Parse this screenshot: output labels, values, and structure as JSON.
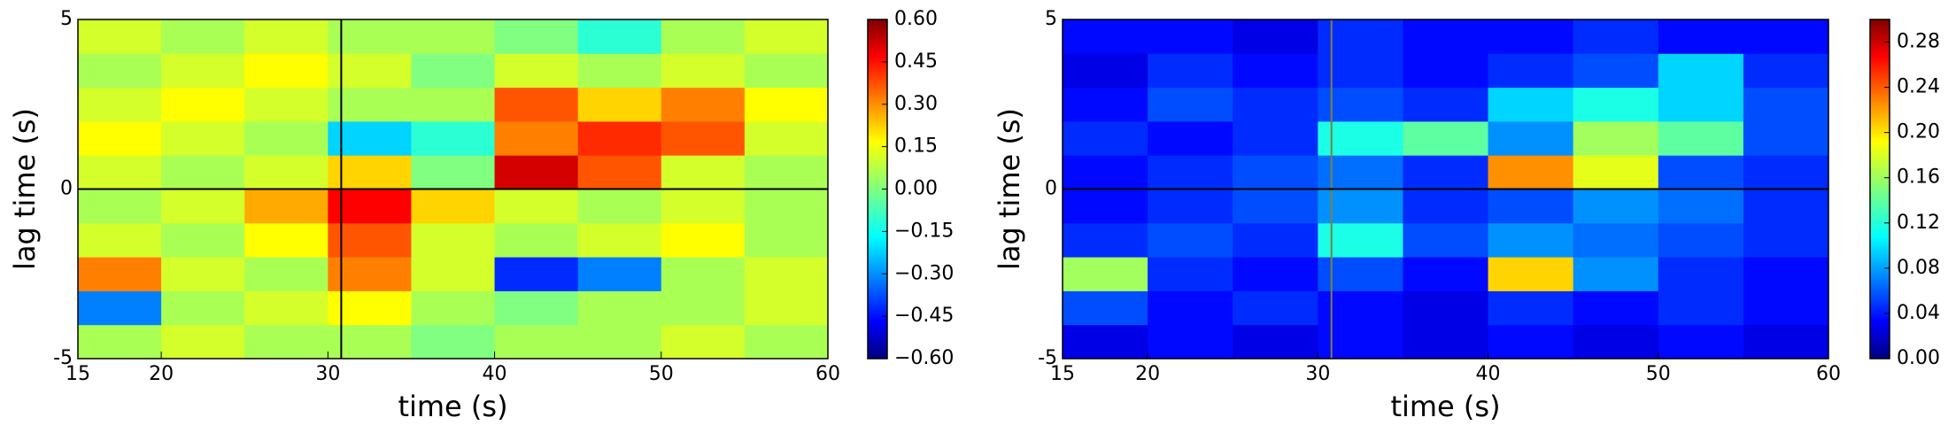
{
  "chart_data": [
    {
      "type": "heatmap",
      "xlabel": "time (s)",
      "ylabel": "lag time (s)",
      "colormap": "jet",
      "x": [
        17.5,
        22.5,
        27.5,
        32.5,
        37.5,
        42.5,
        47.5,
        52.5,
        57.5
      ],
      "y": [
        -4.5,
        -3.5,
        -2.5,
        -1.5,
        -0.5,
        0.5,
        1.5,
        2.5,
        3.5,
        4.5
      ],
      "z": [
        [
          0.05,
          0.1,
          0.05,
          0.05,
          0.0,
          0.05,
          0.05,
          0.1,
          0.05
        ],
        [
          -0.3,
          0.05,
          0.1,
          0.15,
          0.05,
          0.0,
          0.05,
          0.05,
          0.1
        ],
        [
          0.3,
          0.1,
          0.05,
          0.3,
          0.1,
          -0.4,
          -0.3,
          0.05,
          0.1
        ],
        [
          0.1,
          0.05,
          0.15,
          0.35,
          0.1,
          0.05,
          0.1,
          0.15,
          0.05
        ],
        [
          0.05,
          0.1,
          0.25,
          0.45,
          0.2,
          0.1,
          0.05,
          0.1,
          0.05
        ],
        [
          0.1,
          0.05,
          0.1,
          0.2,
          0.0,
          0.5,
          0.35,
          0.1,
          0.05
        ],
        [
          0.15,
          0.1,
          0.05,
          -0.2,
          -0.1,
          0.3,
          0.4,
          0.35,
          0.1
        ],
        [
          0.1,
          0.15,
          0.1,
          0.05,
          0.05,
          0.35,
          0.2,
          0.3,
          0.15
        ],
        [
          0.05,
          0.1,
          0.15,
          0.1,
          0.0,
          0.1,
          0.05,
          0.1,
          0.05
        ],
        [
          0.1,
          0.05,
          0.1,
          0.05,
          0.05,
          0.0,
          -0.1,
          0.05,
          0.1
        ]
      ],
      "xlim": [
        15,
        60
      ],
      "xticks": [
        15,
        20,
        30,
        40,
        50,
        60
      ],
      "ylim": [
        -5,
        5
      ],
      "yticks": [
        -5,
        0,
        5
      ],
      "vline": 30.8,
      "hline": 0,
      "line_color": "#000000",
      "clim": [
        -0.6,
        0.6
      ],
      "cticks": [
        {
          "value": -0.6,
          "label": "−0.60"
        },
        {
          "value": -0.45,
          "label": "−0.45"
        },
        {
          "value": -0.3,
          "label": "−0.30"
        },
        {
          "value": -0.15,
          "label": "−0.15"
        },
        {
          "value": 0,
          "label": "0.00"
        },
        {
          "value": 0.15,
          "label": "0.15"
        },
        {
          "value": 0.3,
          "label": "0.30"
        },
        {
          "value": 0.45,
          "label": "0.45"
        },
        {
          "value": 0.6,
          "label": "0.60"
        }
      ]
    },
    {
      "type": "heatmap",
      "xlabel": "time (s)",
      "ylabel": "lag time (s)",
      "colormap": "jet",
      "x": [
        17.5,
        22.5,
        27.5,
        32.5,
        37.5,
        42.5,
        47.5,
        52.5,
        57.5
      ],
      "y": [
        -4.5,
        -3.5,
        -2.5,
        -1.5,
        -0.5,
        0.5,
        1.5,
        2.5,
        3.5,
        4.5
      ],
      "z": [
        [
          0.03,
          0.04,
          0.03,
          0.04,
          0.03,
          0.04,
          0.03,
          0.04,
          0.03
        ],
        [
          0.06,
          0.04,
          0.05,
          0.04,
          0.03,
          0.05,
          0.04,
          0.05,
          0.04
        ],
        [
          0.16,
          0.05,
          0.04,
          0.06,
          0.04,
          0.2,
          0.08,
          0.05,
          0.04
        ],
        [
          0.05,
          0.06,
          0.05,
          0.12,
          0.06,
          0.08,
          0.07,
          0.06,
          0.05
        ],
        [
          0.04,
          0.05,
          0.06,
          0.08,
          0.05,
          0.06,
          0.08,
          0.07,
          0.05
        ],
        [
          0.04,
          0.05,
          0.06,
          0.07,
          0.05,
          0.22,
          0.18,
          0.06,
          0.05
        ],
        [
          0.05,
          0.04,
          0.05,
          0.12,
          0.14,
          0.08,
          0.16,
          0.14,
          0.06
        ],
        [
          0.04,
          0.06,
          0.05,
          0.06,
          0.05,
          0.1,
          0.12,
          0.1,
          0.06
        ],
        [
          0.03,
          0.05,
          0.04,
          0.05,
          0.04,
          0.05,
          0.06,
          0.1,
          0.05
        ],
        [
          0.04,
          0.04,
          0.03,
          0.05,
          0.04,
          0.04,
          0.05,
          0.04,
          0.04
        ]
      ],
      "xlim": [
        15,
        60
      ],
      "xticks": [
        15,
        20,
        30,
        40,
        50,
        60
      ],
      "ylim": [
        -5,
        5
      ],
      "yticks": [
        -5,
        0,
        5
      ],
      "vline": 30.8,
      "hline": 0,
      "vline_color": "#808040",
      "line_color": "#000000",
      "clim": [
        0,
        0.3
      ],
      "cticks": [
        {
          "value": 0,
          "label": "0.00"
        },
        {
          "value": 0.04,
          "label": "0.04"
        },
        {
          "value": 0.08,
          "label": "0.08"
        },
        {
          "value": 0.12,
          "label": "0.12"
        },
        {
          "value": 0.16,
          "label": "0.16"
        },
        {
          "value": 0.2,
          "label": "0.20"
        },
        {
          "value": 0.24,
          "label": "0.24"
        },
        {
          "value": 0.28,
          "label": "0.28"
        }
      ]
    }
  ]
}
